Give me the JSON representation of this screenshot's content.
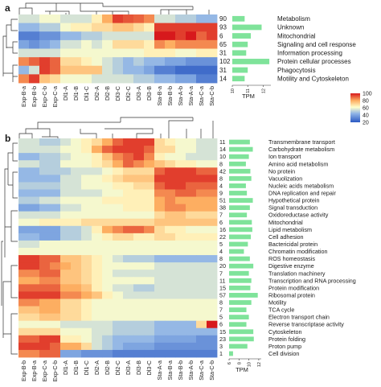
{
  "chart_data": [
    {
      "type": "heatmap",
      "panel_label": "a",
      "columns": [
        "Exp-B-a",
        "Exp-B-b",
        "Exp-C-b",
        "Exp-C-a",
        "Dl1-A",
        "Dl1-B",
        "Dl1-C",
        "Dl2-A",
        "Dl2-B",
        "Dl3-C",
        "Dl2-C",
        "Dl3-A",
        "Dl3-B",
        "Sta-B-a",
        "Sta-B-b",
        "Sta-A-b",
        "Sta-A-a",
        "Sta-C-a",
        "Sta-C-b"
      ],
      "rows": [
        {
          "label": "Metabolism",
          "count": 90,
          "tpm": 10.8
        },
        {
          "label": "Unknown",
          "count": 93,
          "tpm": 11.9
        },
        {
          "label": "Mitochondrial",
          "count": 6,
          "tpm": 11.2
        },
        {
          "label": "Signaling and cell response",
          "count": 65,
          "tpm": 11.0
        },
        {
          "label": "Information processing",
          "count": 31,
          "tpm": 10.9
        },
        {
          "label": "Protein cellular processes",
          "count": 102,
          "tpm": 12.4
        },
        {
          "label": "Phagocytosis",
          "count": 31,
          "tpm": 11.0
        },
        {
          "label": "Motility and Cytoskeleton",
          "count": 14,
          "tpm": 10.8
        }
      ],
      "values": [
        [
          55,
          55,
          60,
          60,
          55,
          55,
          55,
          65,
          80,
          95,
          92,
          90,
          85,
          55,
          55,
          50,
          50,
          45,
          45
        ],
        [
          45,
          45,
          50,
          50,
          60,
          65,
          65,
          70,
          70,
          75,
          75,
          70,
          65,
          95,
          95,
          95,
          95,
          95,
          95
        ],
        [
          30,
          30,
          35,
          35,
          45,
          45,
          50,
          50,
          55,
          55,
          55,
          55,
          55,
          100,
          100,
          95,
          100,
          90,
          95
        ],
        [
          40,
          35,
          40,
          45,
          55,
          55,
          60,
          55,
          60,
          70,
          70,
          70,
          65,
          85,
          80,
          85,
          85,
          85,
          85
        ],
        [
          55,
          55,
          55,
          55,
          60,
          60,
          60,
          60,
          60,
          60,
          60,
          60,
          65,
          65,
          65,
          60,
          60,
          65,
          65
        ],
        [
          85,
          90,
          95,
          90,
          70,
          70,
          65,
          60,
          55,
          50,
          45,
          50,
          45,
          45,
          40,
          40,
          35,
          35,
          35
        ],
        [
          45,
          55,
          95,
          90,
          75,
          75,
          75,
          75,
          55,
          50,
          45,
          45,
          40,
          30,
          30,
          25,
          25,
          25,
          25
        ],
        [
          85,
          95,
          75,
          70,
          60,
          60,
          60,
          55,
          55,
          55,
          55,
          50,
          50,
          45,
          45,
          40,
          40,
          30,
          30
        ]
      ],
      "tpm_axis": {
        "label": "TPM",
        "ticks": [
          10,
          11,
          12
        ]
      },
      "colorbar": {
        "ticks": [
          100,
          80,
          60,
          40,
          20
        ],
        "range": [
          20,
          100
        ],
        "colors": [
          "#2b59c3",
          "#8fb4e6",
          "#ffffcc",
          "#fdae61",
          "#d7191c"
        ]
      }
    },
    {
      "type": "heatmap",
      "panel_label": "b",
      "columns": [
        "Exp-B-b",
        "Exp-B-a",
        "Exp-C-a",
        "Exp-C-b",
        "Dl1-A",
        "Dl1-B",
        "Dl1-C",
        "Dl2-A",
        "Dl2-B",
        "Dl2-C",
        "Dl3-A",
        "Dl3-B",
        "Dl3-C",
        "Sta-A-a",
        "Sta-B-a",
        "Sta-B-b",
        "Sta-A-b",
        "Sta-C-a",
        "Sta-C-b"
      ],
      "rows": [
        {
          "label": "Transmembrane transport",
          "count": 11,
          "tpm": 10.2
        },
        {
          "label": "Carbohydrate metabolism",
          "count": 14,
          "tpm": 10.8
        },
        {
          "label": "Ion transport",
          "count": 10,
          "tpm": 10.0
        },
        {
          "label": "Amino acid metabolism",
          "count": 8,
          "tpm": 9.4
        },
        {
          "label": "No protein",
          "count": 42,
          "tpm": 10.3
        },
        {
          "label": "Vacuolization",
          "count": 8,
          "tpm": 10.5
        },
        {
          "label": "Nucleic acids metabolism",
          "count": 4,
          "tpm": 9.4
        },
        {
          "label": "DNA replication and repair",
          "count": 9,
          "tpm": 9.6
        },
        {
          "label": "Hypothetical protein",
          "count": 51,
          "tpm": 10.8
        },
        {
          "label": "Signal transduction",
          "count": 38,
          "tpm": 10.2
        },
        {
          "label": "Oxidoreductase activity",
          "count": 7,
          "tpm": 9.6
        },
        {
          "label": "Mitochondrial",
          "count": 6,
          "tpm": 10.6
        },
        {
          "label": "Lipid metabolism",
          "count": 16,
          "tpm": 10.7
        },
        {
          "label": "Cell adhesion",
          "count": 22,
          "tpm": 10.4
        },
        {
          "label": "Bactericidal protein",
          "count": 5,
          "tpm": 9.8
        },
        {
          "label": "Chromatin modification",
          "count": 4,
          "tpm": 9.0
        },
        {
          "label": "ROS homeostasis",
          "count": 8,
          "tpm": 10.2
        },
        {
          "label": "Digestive enzyme",
          "count": 20,
          "tpm": 10.9
        },
        {
          "label": "Translation machinery",
          "count": 7,
          "tpm": 10.0
        },
        {
          "label": "Transcription and RNA processing",
          "count": 11,
          "tpm": 10.5
        },
        {
          "label": "Protein modification",
          "count": 15,
          "tpm": 10.3
        },
        {
          "label": "Ribosomal protein",
          "count": 57,
          "tpm": 11.8
        },
        {
          "label": "Motility",
          "count": 8,
          "tpm": 10.5
        },
        {
          "label": "TCA cycle",
          "count": 7,
          "tpm": 9.5
        },
        {
          "label": "Electron transport chain",
          "count": 5,
          "tpm": 10.0
        },
        {
          "label": "Reverse transcriptase activity",
          "count": 6,
          "tpm": 9.5
        },
        {
          "label": "Cytoskeleton",
          "count": 15,
          "tpm": 10.9
        },
        {
          "label": "Protein folding",
          "count": 23,
          "tpm": 11.0
        },
        {
          "label": "Proton pump",
          "count": 3,
          "tpm": 9.7
        },
        {
          "label": "Cell division",
          "count": 1,
          "tpm": 6.8
        }
      ],
      "values": [
        [
          55,
          55,
          50,
          50,
          55,
          60,
          65,
          70,
          80,
          90,
          95,
          95,
          95,
          70,
          65,
          60,
          60,
          55,
          55
        ],
        [
          55,
          55,
          55,
          55,
          60,
          60,
          65,
          80,
          90,
          95,
          95,
          95,
          90,
          70,
          70,
          60,
          60,
          55,
          55
        ],
        [
          45,
          45,
          50,
          50,
          55,
          60,
          60,
          65,
          75,
          85,
          90,
          95,
          85,
          65,
          60,
          60,
          55,
          55,
          55
        ],
        [
          55,
          55,
          50,
          50,
          60,
          60,
          60,
          65,
          70,
          80,
          90,
          85,
          80,
          75,
          70,
          65,
          65,
          60,
          60
        ],
        [
          45,
          45,
          50,
          50,
          50,
          55,
          55,
          55,
          60,
          65,
          70,
          70,
          70,
          90,
          95,
          95,
          95,
          90,
          90
        ],
        [
          45,
          45,
          45,
          45,
          55,
          55,
          60,
          60,
          65,
          70,
          75,
          75,
          75,
          95,
          95,
          95,
          95,
          95,
          95
        ],
        [
          50,
          50,
          50,
          50,
          55,
          55,
          60,
          60,
          60,
          65,
          65,
          70,
          70,
          90,
          95,
          95,
          90,
          90,
          90
        ],
        [
          45,
          45,
          45,
          45,
          55,
          55,
          55,
          55,
          60,
          60,
          65,
          65,
          65,
          85,
          85,
          90,
          90,
          85,
          85
        ],
        [
          50,
          50,
          55,
          55,
          60,
          60,
          60,
          60,
          65,
          65,
          65,
          65,
          65,
          80,
          85,
          80,
          80,
          80,
          80
        ],
        [
          40,
          40,
          45,
          45,
          55,
          55,
          60,
          60,
          60,
          60,
          65,
          65,
          65,
          80,
          85,
          85,
          80,
          80,
          80
        ],
        [
          55,
          55,
          55,
          55,
          60,
          60,
          60,
          60,
          60,
          60,
          60,
          60,
          60,
          70,
          75,
          75,
          70,
          70,
          70
        ],
        [
          60,
          60,
          65,
          65,
          65,
          65,
          70,
          70,
          70,
          70,
          70,
          70,
          70,
          75,
          75,
          75,
          75,
          75,
          75
        ],
        [
          40,
          40,
          40,
          40,
          50,
          50,
          55,
          65,
          80,
          85,
          90,
          90,
          85,
          70,
          65,
          65,
          60,
          60,
          60
        ],
        [
          45,
          45,
          40,
          40,
          50,
          50,
          55,
          60,
          65,
          70,
          70,
          65,
          65,
          70,
          70,
          65,
          65,
          65,
          65
        ],
        [
          55,
          55,
          60,
          60,
          60,
          60,
          60,
          60,
          60,
          60,
          60,
          60,
          60,
          60,
          60,
          60,
          60,
          60,
          60
        ],
        [
          60,
          60,
          60,
          60,
          60,
          60,
          60,
          60,
          60,
          60,
          60,
          60,
          60,
          60,
          60,
          60,
          60,
          60,
          60
        ],
        [
          95,
          95,
          90,
          90,
          75,
          75,
          70,
          65,
          60,
          55,
          50,
          50,
          50,
          45,
          45,
          45,
          45,
          45,
          45
        ],
        [
          95,
          95,
          90,
          85,
          80,
          75,
          70,
          65,
          60,
          60,
          60,
          60,
          60,
          55,
          55,
          55,
          55,
          55,
          55
        ],
        [
          85,
          85,
          90,
          90,
          75,
          75,
          70,
          65,
          60,
          55,
          55,
          55,
          55,
          55,
          55,
          55,
          55,
          55,
          55
        ],
        [
          80,
          80,
          85,
          85,
          75,
          75,
          70,
          65,
          60,
          60,
          60,
          60,
          60,
          55,
          55,
          55,
          55,
          55,
          55
        ],
        [
          90,
          90,
          90,
          90,
          80,
          80,
          75,
          65,
          60,
          55,
          55,
          50,
          50,
          55,
          55,
          55,
          55,
          55,
          55
        ],
        [
          95,
          95,
          95,
          95,
          85,
          85,
          80,
          75,
          65,
          60,
          55,
          55,
          55,
          55,
          55,
          55,
          55,
          55,
          55
        ],
        [
          85,
          85,
          80,
          80,
          70,
          70,
          65,
          60,
          60,
          60,
          60,
          60,
          60,
          60,
          60,
          60,
          60,
          60,
          60
        ],
        [
          75,
          75,
          80,
          80,
          70,
          70,
          65,
          60,
          60,
          60,
          60,
          60,
          60,
          60,
          60,
          60,
          60,
          60,
          60
        ],
        [
          70,
          70,
          75,
          75,
          70,
          70,
          65,
          60,
          60,
          60,
          60,
          60,
          60,
          60,
          60,
          60,
          60,
          60,
          60
        ],
        [
          60,
          60,
          60,
          60,
          55,
          55,
          55,
          55,
          55,
          50,
          50,
          50,
          50,
          45,
          45,
          45,
          45,
          70,
          100
        ],
        [
          70,
          70,
          70,
          70,
          60,
          60,
          60,
          55,
          55,
          50,
          50,
          50,
          50,
          45,
          45,
          45,
          45,
          45,
          45
        ],
        [
          90,
          90,
          95,
          95,
          65,
          65,
          60,
          55,
          50,
          45,
          45,
          45,
          45,
          40,
          40,
          40,
          40,
          35,
          35
        ],
        [
          95,
          95,
          95,
          90,
          80,
          80,
          70,
          55,
          50,
          45,
          40,
          40,
          40,
          35,
          35,
          35,
          35,
          35,
          35
        ],
        [
          85,
          85,
          90,
          90,
          40,
          40,
          35,
          35,
          35,
          30,
          30,
          30,
          30,
          30,
          30,
          30,
          30,
          30,
          30
        ]
      ],
      "tpm_axis": {
        "label": "TPM",
        "ticks": [
          6,
          8,
          10,
          12
        ]
      }
    }
  ]
}
